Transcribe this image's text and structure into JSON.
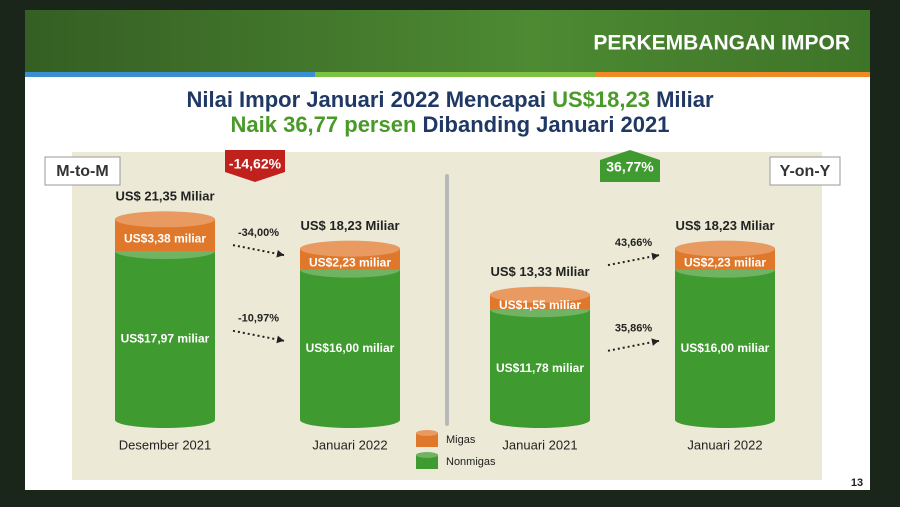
{
  "header": {
    "title": "PERKEMBANGAN IMPOR"
  },
  "headline": {
    "line1": {
      "text": "Nilai Impor Januari 2022 Mencapai",
      "highlight": "US$18,23",
      "end": "Miliar"
    },
    "line2": {
      "highlight": "Naik 36,77 persen",
      "text": "Dibanding Januari 2021"
    }
  },
  "page_number": 13,
  "chart_data": [
    {
      "type": "bar",
      "stacked": true,
      "label": "M-to-M",
      "change_label": "-14,62%",
      "badge_color": "#c0211d",
      "categories": [
        "Desember 2021",
        "Januari 2022"
      ],
      "total_labels": [
        "US$ 21,35 Miliar",
        "US$ 18,23 Miliar"
      ],
      "series": [
        {
          "name": "Nonmigas",
          "color": "#3f9a2f",
          "values": [
            17.97,
            16.0
          ],
          "value_labels": [
            "US$17,97 miliar",
            "US$16,00 miliar"
          ],
          "change_label": "-10,97%"
        },
        {
          "name": "Migas",
          "color": "#e0782c",
          "values": [
            3.38,
            2.23
          ],
          "value_labels": [
            "US$3,38 miliar",
            "US$2,23 miliar"
          ],
          "change_label": "-34,00%"
        }
      ]
    },
    {
      "type": "bar",
      "stacked": true,
      "label": "Y-on-Y",
      "change_label": "36,77%",
      "badge_color": "#3f9a2f",
      "categories": [
        "Januari 2021",
        "Januari 2022"
      ],
      "total_labels": [
        "US$ 13,33 Miliar",
        "US$ 18,23 Miliar"
      ],
      "series": [
        {
          "name": "Nonmigas",
          "color": "#3f9a2f",
          "values": [
            11.78,
            16.0
          ],
          "value_labels": [
            "US$11,78 miliar",
            "US$16,00 miliar"
          ],
          "change_label": "35,86%"
        },
        {
          "name": "Migas",
          "color": "#e0782c",
          "values": [
            1.55,
            2.23
          ],
          "value_labels": [
            "US$1,55 miliar",
            "US$2,23 miliar"
          ],
          "change_label": "43,66%"
        }
      ]
    }
  ]
}
